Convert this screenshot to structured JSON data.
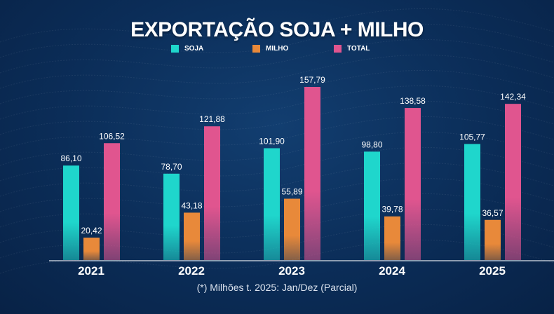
{
  "colors": {
    "soja": "#1fd6cc",
    "milho": "#e8893a",
    "total": "#e0558f"
  },
  "chart_data": {
    "type": "bar",
    "title": "EXPORTAÇÃO SOJA + MILHO",
    "categories": [
      "2021",
      "2022",
      "2023",
      "2024",
      "2025"
    ],
    "series": [
      {
        "name": "SOJA",
        "values": [
          86.1,
          78.7,
          101.9,
          98.8,
          105.77
        ],
        "labels": [
          "86,10",
          "78,70",
          "101,90",
          "98,80",
          "105,77"
        ]
      },
      {
        "name": "MILHO",
        "values": [
          20.42,
          43.18,
          55.89,
          39.78,
          36.57
        ],
        "labels": [
          "20,42",
          "43,18",
          "55,89",
          "39,78",
          "36,57"
        ]
      },
      {
        "name": "TOTAL",
        "values": [
          106.52,
          121.88,
          157.79,
          138.58,
          142.34
        ],
        "labels": [
          "106,52",
          "121,88",
          "157,79",
          "138,58",
          "142,34"
        ]
      }
    ],
    "legend_position": "top-center",
    "ylim": [
      0,
      160
    ],
    "grid": false,
    "footnote": "(*) Milhões t. 2025: Jan/Dez (Parcial)"
  }
}
